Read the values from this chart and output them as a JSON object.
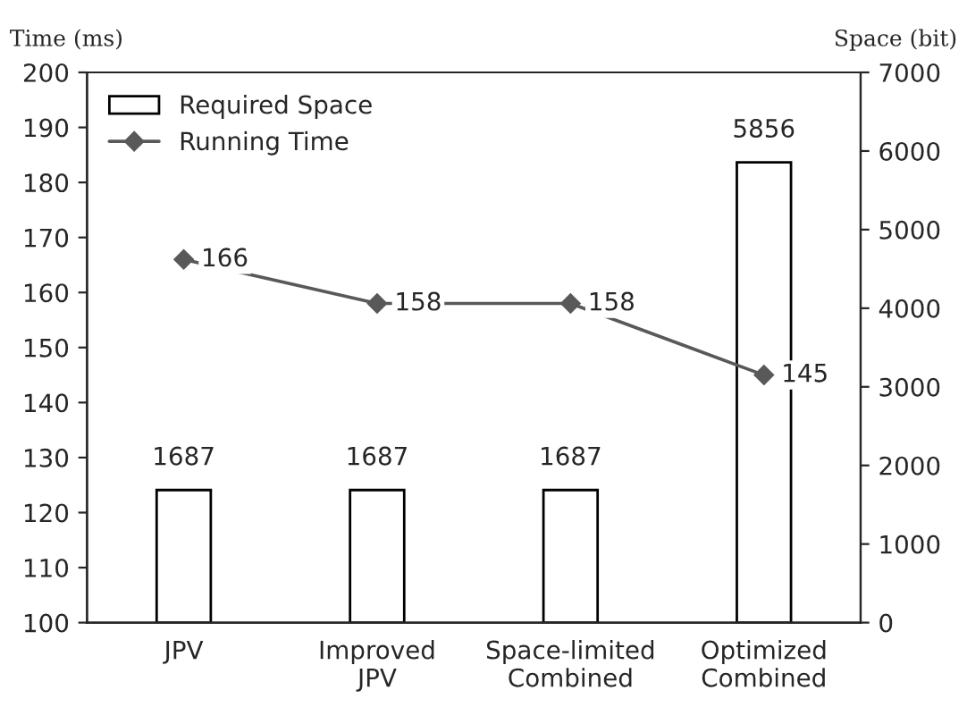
{
  "chart_data": {
    "type": "bar",
    "ylabel": "Time (ms)",
    "y2label": "Space (bit)",
    "categories": [
      "JPV",
      "Improved\nJPV",
      "Space-limited\nCombined",
      "Optimized\nCombined"
    ],
    "series": [
      {
        "name": "Required Space",
        "axis": "y2",
        "color": "#ffffff",
        "values": [
          1687,
          1687,
          1687,
          5856
        ]
      },
      {
        "name": "Running Time",
        "type": "line",
        "axis": "y",
        "color": "#595959",
        "marker": "diamond",
        "values": [
          166,
          158,
          158,
          145
        ]
      }
    ],
    "ylim": [
      100,
      200
    ],
    "yticks": [
      100,
      110,
      120,
      130,
      140,
      150,
      160,
      170,
      180,
      190,
      200
    ],
    "y2lim": [
      0,
      7000
    ],
    "y2ticks": [
      0,
      1000,
      2000,
      3000,
      4000,
      5000,
      6000,
      7000
    ],
    "data_labels": true,
    "grid": false,
    "legend": "top left"
  }
}
